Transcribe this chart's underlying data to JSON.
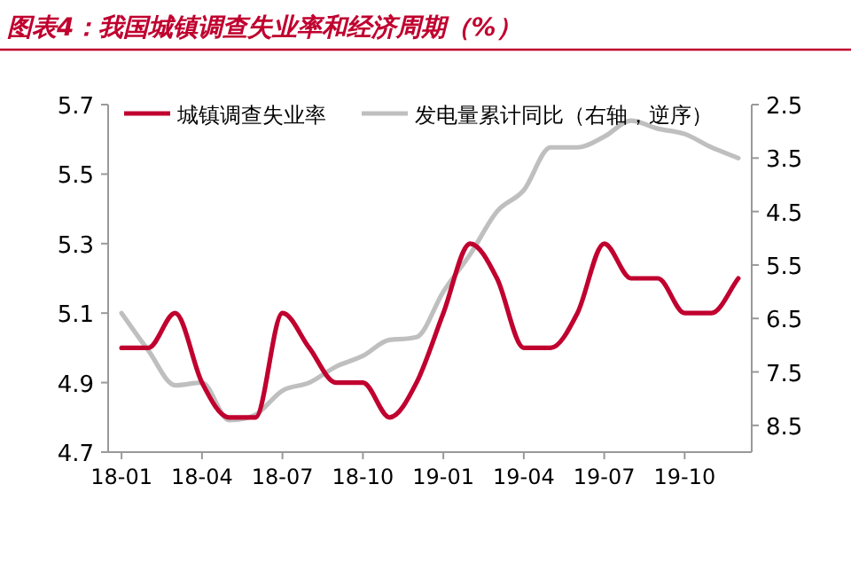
{
  "chart_data": {
    "type": "line",
    "title": "图表4：我国城镇调查失业率和经济周期（%）",
    "categories": [
      "18-01",
      null,
      null,
      "18-04",
      null,
      null,
      "18-07",
      null,
      null,
      "18-10",
      null,
      null,
      "19-01",
      null,
      null,
      "19-04",
      null,
      null,
      "19-07",
      null,
      null,
      "19-10",
      null,
      null
    ],
    "series": [
      {
        "name": "城镇调查失业率",
        "color": "#c0002f",
        "values": [
          5.0,
          5.0,
          5.1,
          4.9,
          4.8,
          4.8,
          5.1,
          5.0,
          4.9,
          4.9,
          4.8,
          4.9,
          5.1,
          5.3,
          5.2,
          5.0,
          5.0,
          5.1,
          5.3,
          5.2,
          5.2,
          5.1,
          5.1,
          5.2
        ]
      },
      {
        "name": "发电量累计同比（右轴，逆序）",
        "color": "#bfbfbf",
        "axis": "y2",
        "values": [
          6.4,
          7.1,
          7.75,
          7.7,
          8.4,
          8.3,
          7.85,
          7.7,
          7.4,
          7.2,
          6.9,
          6.85,
          6.0,
          5.3,
          4.5,
          4.1,
          3.3,
          3.3,
          3.1,
          2.8,
          2.95,
          3.05,
          3.3,
          3.5
        ]
      }
    ],
    "ylim": [
      4.7,
      5.7
    ],
    "yticks": [
      4.7,
      4.9,
      5.1,
      5.3,
      5.5,
      5.7
    ],
    "y2lim": [
      9,
      2.5
    ],
    "y2ticks": [
      2.5,
      3.5,
      4.5,
      5.5,
      6.5,
      7.5,
      8.5
    ],
    "legend": "top",
    "grid": false
  }
}
